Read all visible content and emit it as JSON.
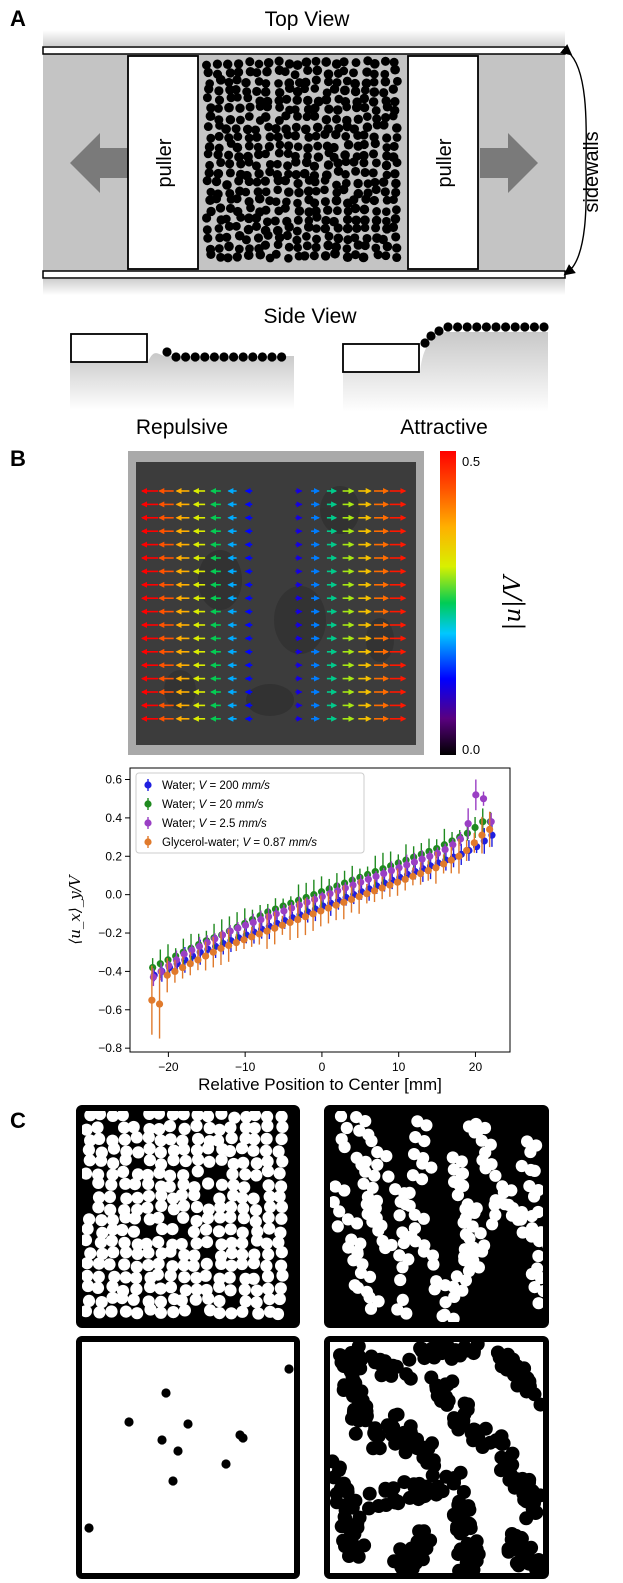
{
  "panel_a": {
    "label": "A",
    "top_view_title": "Top View",
    "puller_left": "puller",
    "puller_right": "puller",
    "sidewalls_label": "sidewalls",
    "side_view_title": "Side View",
    "repulsive_label": "Repulsive",
    "attractive_label": "Attractive"
  },
  "panel_b": {
    "label": "B",
    "colorbar": {
      "max_label": "0.5",
      "min_label": "0.0",
      "title": "|u|/V"
    }
  },
  "chart_data": {
    "type": "scatter",
    "xlabel": "Relative Position to Center [mm]",
    "ylabel": "⟨u_x⟩_y/V",
    "xlim": [
      -25,
      24.5
    ],
    "ylim": [
      -0.82,
      0.66
    ],
    "xticks": [
      -20,
      -10,
      0,
      10,
      20
    ],
    "yticks": [
      -0.8,
      -0.6,
      -0.4,
      -0.2,
      0.0,
      0.2,
      0.4,
      0.6
    ],
    "xtick_labels": [
      "−20",
      "−10",
      "0",
      "10",
      "20"
    ],
    "ytick_labels": [
      "−0.8",
      "−0.6",
      "−0.4",
      "−0.2",
      "0.0",
      "0.2",
      "0.4",
      "0.6"
    ],
    "legend_position": "upper-left",
    "series": [
      {
        "name": "Water; V = 200 mm/s",
        "legend_prefix": "Water; ",
        "legend_var": "V",
        "legend_eq": " = 200 ",
        "legend_unit": "mm/s",
        "color": "#1f1fe0",
        "x": [
          -22,
          -21,
          -20,
          -19,
          -18,
          -17,
          -16,
          -15,
          -14,
          -13,
          -12,
          -11,
          -10,
          -9,
          -8,
          -7,
          -6,
          -5,
          -4,
          -3,
          -2,
          -1,
          0,
          1,
          2,
          3,
          4,
          5,
          6,
          7,
          8,
          9,
          10,
          11,
          12,
          13,
          14,
          15,
          16,
          17,
          18,
          19,
          20,
          21,
          22
        ],
        "y": [
          -0.42,
          -0.4,
          -0.38,
          -0.36,
          -0.34,
          -0.32,
          -0.3,
          -0.285,
          -0.27,
          -0.255,
          -0.24,
          -0.225,
          -0.21,
          -0.195,
          -0.18,
          -0.165,
          -0.15,
          -0.135,
          -0.12,
          -0.105,
          -0.09,
          -0.075,
          -0.06,
          -0.045,
          -0.03,
          -0.015,
          0.0,
          0.015,
          0.03,
          0.045,
          0.06,
          0.075,
          0.09,
          0.105,
          0.12,
          0.135,
          0.15,
          0.165,
          0.18,
          0.195,
          0.21,
          0.23,
          0.25,
          0.28,
          0.31
        ],
        "err": 0.05
      },
      {
        "name": "Water; V = 20 mm/s",
        "legend_prefix": "Water; ",
        "legend_var": "V",
        "legend_eq": " = 20 ",
        "legend_unit": "mm/s",
        "color": "#1f8a1f",
        "x": [
          -22,
          -21,
          -20,
          -19,
          -18,
          -17,
          -16,
          -15,
          -14,
          -13,
          -12,
          -11,
          -10,
          -9,
          -8,
          -7,
          -6,
          -5,
          -4,
          -3,
          -2,
          -1,
          0,
          1,
          2,
          3,
          4,
          5,
          6,
          7,
          8,
          9,
          10,
          11,
          12,
          13,
          14,
          15,
          16,
          17,
          18,
          19,
          20,
          21,
          22
        ],
        "y": [
          -0.38,
          -0.36,
          -0.34,
          -0.32,
          -0.3,
          -0.28,
          -0.26,
          -0.24,
          -0.225,
          -0.21,
          -0.19,
          -0.17,
          -0.15,
          -0.13,
          -0.11,
          -0.09,
          -0.075,
          -0.06,
          -0.045,
          -0.03,
          -0.015,
          0.0,
          0.015,
          0.03,
          0.045,
          0.06,
          0.075,
          0.09,
          0.105,
          0.12,
          0.135,
          0.15,
          0.165,
          0.18,
          0.195,
          0.21,
          0.225,
          0.24,
          0.26,
          0.28,
          0.3,
          0.32,
          0.35,
          0.38,
          0.38
        ],
        "err": 0.06
      },
      {
        "name": "Water; V = 2.5 mm/s",
        "legend_prefix": "Water; ",
        "legend_var": "V",
        "legend_eq": " = 2.5 ",
        "legend_unit": "mm/s",
        "color": "#9a3fc4",
        "x": [
          -22,
          -21,
          -20,
          -19,
          -18,
          -17,
          -16,
          -15,
          -14,
          -13,
          -12,
          -11,
          -10,
          -9,
          -8,
          -7,
          -6,
          -5,
          -4,
          -3,
          -2,
          -1,
          0,
          1,
          2,
          3,
          4,
          5,
          6,
          7,
          8,
          9,
          10,
          11,
          12,
          13,
          14,
          15,
          16,
          17,
          18,
          19,
          20,
          21,
          22
        ],
        "y": [
          -0.43,
          -0.4,
          -0.37,
          -0.34,
          -0.31,
          -0.29,
          -0.27,
          -0.25,
          -0.23,
          -0.21,
          -0.19,
          -0.175,
          -0.16,
          -0.145,
          -0.13,
          -0.115,
          -0.1,
          -0.085,
          -0.07,
          -0.055,
          -0.04,
          -0.025,
          -0.01,
          0.005,
          0.02,
          0.035,
          0.05,
          0.065,
          0.08,
          0.095,
          0.11,
          0.125,
          0.14,
          0.155,
          0.17,
          0.185,
          0.2,
          0.215,
          0.235,
          0.26,
          0.29,
          0.37,
          0.52,
          0.5,
          0.38
        ],
        "err": 0.04
      },
      {
        "name": "Glycerol-water; V = 0.87 mm/s",
        "legend_prefix": "Glycerol-water; ",
        "legend_var": "V",
        "legend_eq": " = 0.87 ",
        "legend_unit": "mm/s",
        "color": "#e07a2c",
        "x": [
          -22,
          -21,
          -20,
          -19,
          -18,
          -17,
          -16,
          -15,
          -14,
          -13,
          -12,
          -11,
          -10,
          -9,
          -8,
          -7,
          -6,
          -5,
          -4,
          -3,
          -2,
          -1,
          0,
          1,
          2,
          3,
          4,
          5,
          6,
          7,
          8,
          9,
          10,
          11,
          12,
          13,
          14,
          15,
          16,
          17,
          18,
          19,
          20,
          21,
          22
        ],
        "y": [
          -0.55,
          -0.57,
          -0.42,
          -0.4,
          -0.38,
          -0.36,
          -0.34,
          -0.32,
          -0.3,
          -0.28,
          -0.265,
          -0.25,
          -0.235,
          -0.22,
          -0.205,
          -0.19,
          -0.175,
          -0.16,
          -0.145,
          -0.13,
          -0.115,
          -0.1,
          -0.085,
          -0.07,
          -0.055,
          -0.04,
          -0.025,
          -0.01,
          0.005,
          0.02,
          0.035,
          0.05,
          0.065,
          0.08,
          0.095,
          0.11,
          0.125,
          0.14,
          0.16,
          0.18,
          0.2,
          0.23,
          0.27,
          0.31,
          0.34
        ],
        "err": 0.07
      }
    ]
  },
  "panel_c": {
    "label": "C"
  }
}
